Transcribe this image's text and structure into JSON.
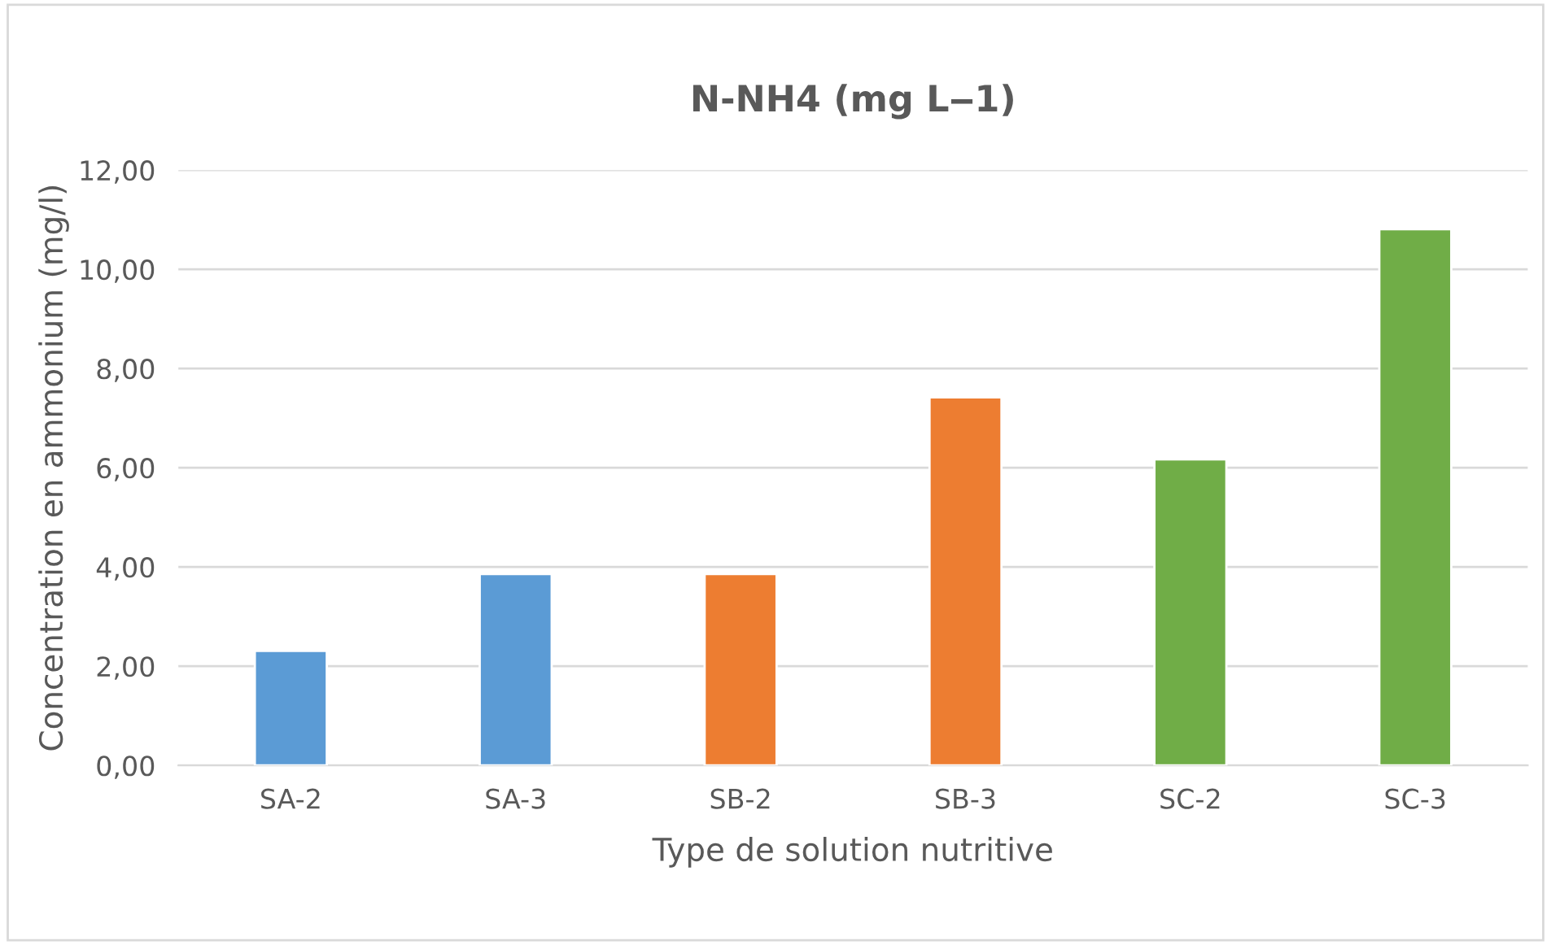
{
  "chart_data": {
    "type": "bar",
    "title": "N-NH4 (mg L‒1)",
    "xlabel": "Type de solution nutritive",
    "ylabel": "Concentration en ammonium (mg/l)",
    "categories": [
      "SA-2",
      "SA-3",
      "SB-2",
      "SB-3",
      "SC-2",
      "SC-3"
    ],
    "values": [
      2.31,
      3.86,
      3.86,
      7.42,
      6.17,
      10.81
    ],
    "colors": [
      "#5b9bd5",
      "#5b9bd5",
      "#ed7d31",
      "#ed7d31",
      "#70ad47",
      "#70ad47"
    ],
    "ylim": [
      0,
      12
    ],
    "yticks": [
      {
        "value": 0,
        "label": "0,00"
      },
      {
        "value": 2,
        "label": "2,00"
      },
      {
        "value": 4,
        "label": "4,00"
      },
      {
        "value": 6,
        "label": "6,00"
      },
      {
        "value": 8,
        "label": "8,00"
      },
      {
        "value": 10,
        "label": "10,00"
      },
      {
        "value": 12,
        "label": "12,00"
      }
    ],
    "grid": "y",
    "legend": false
  }
}
